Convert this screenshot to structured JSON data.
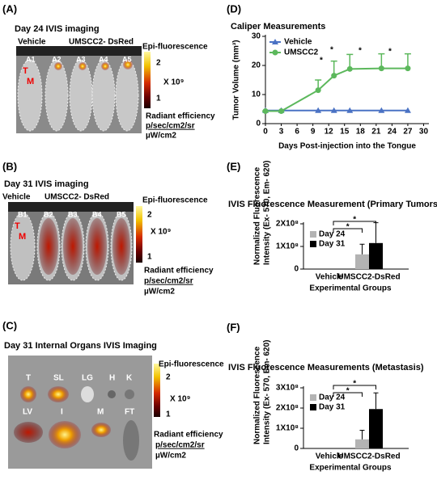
{
  "panels": {
    "A": {
      "label": "(A)",
      "title": "Day 24 IVIS imaging",
      "groups": [
        "Vehicle",
        "UMSCC2- DsRed"
      ],
      "mice": [
        "A1",
        "A2",
        "A3",
        "A4",
        "A5"
      ],
      "markers": [
        "T",
        "M"
      ],
      "colorbar": {
        "title": "Epi-fluorescence",
        "ticks": [
          "2",
          "1"
        ],
        "scale": "X 10⁹",
        "unit_title": "Radiant efficiency",
        "units": [
          "p/sec/cm2/sr",
          "µW/cm2"
        ]
      }
    },
    "B": {
      "label": "(B)",
      "title": "Day 31 IVIS imaging",
      "groups": [
        "Vehicle",
        "UMSCC2- DsRed"
      ],
      "mice": [
        "B1",
        "B2",
        "B3",
        "B4",
        "B5"
      ],
      "markers": [
        "T",
        "M"
      ],
      "colorbar": {
        "title": "Epi-fluorescence",
        "ticks": [
          "2",
          "1"
        ],
        "scale": "X 10⁹",
        "unit_title": "Radiant efficiency",
        "units": [
          "p/sec/cm2/sr",
          "µW/cm2"
        ]
      }
    },
    "C": {
      "label": "(C)",
      "title": "Day 31 Internal Organs IVIS Imaging",
      "organs": [
        "T",
        "SL",
        "LG",
        "H",
        "K",
        "LV",
        "I",
        "M",
        "FT"
      ],
      "colorbar": {
        "title": "Epi-fluorescence",
        "ticks": [
          "2",
          "1"
        ],
        "scale": "X 10⁹",
        "unit_title": "Radiant efficiency",
        "units": [
          "p/sec/cm2/sr",
          "µW/cm2"
        ]
      }
    }
  },
  "chart_data": [
    {
      "type": "line",
      "panel_label": "(D)",
      "title": "Caliper Measurements",
      "x_label": "Days Post-injection into the Tongue",
      "y_label": "Tumor Volume (mm³)",
      "x": [
        0,
        3,
        10,
        13,
        16,
        22,
        27
      ],
      "xlim": [
        0,
        31
      ],
      "xticks": [
        0,
        3,
        6,
        9,
        12,
        15,
        18,
        21,
        24,
        27,
        30
      ],
      "ylim": [
        0,
        30
      ],
      "yticks": [
        0,
        10,
        20,
        30
      ],
      "series": [
        {
          "name": "Vehicle",
          "color": "#4a72c4",
          "marker": "triangle",
          "values": [
            4.5,
            4.5,
            4.5,
            4.5,
            4.5,
            4.5,
            4.5
          ]
        },
        {
          "name": "UMSCC2",
          "color": "#5cb85c",
          "marker": "circle",
          "values": [
            4.3,
            4.3,
            11.5,
            16.5,
            18.8,
            19,
            19
          ],
          "errors": [
            0,
            0,
            3.5,
            5,
            5,
            5,
            5
          ]
        }
      ],
      "annotations": [
        "*",
        "*",
        "*",
        "*"
      ]
    },
    {
      "type": "bar",
      "panel_label": "(E)",
      "title": "IVIS Fluorescence Measurement (Primary Tumors)",
      "x_label": "Experimental Groups",
      "y_label": [
        "Normalized Fluorescence",
        "Intensity (Ex- 570, Em- 620)"
      ],
      "categories": [
        "Vehicle",
        "UMSCC2-DsRed"
      ],
      "ylim": [
        0,
        200000000
      ],
      "yticks": [
        0,
        {
          "value": 100000000,
          "label": "1X10⁸"
        },
        {
          "value": 200000000,
          "label": "2X10⁸"
        }
      ],
      "series": [
        {
          "name": "Day 24",
          "color": "#b3b3b3",
          "values": [
            0,
            65000000
          ],
          "errors": [
            0,
            45000000
          ]
        },
        {
          "name": "Day 31",
          "color": "#000000",
          "values": [
            0,
            115000000
          ],
          "errors": [
            0,
            90000000
          ]
        }
      ],
      "annotations": [
        "*",
        "*"
      ]
    },
    {
      "type": "bar",
      "panel_label": "(F)",
      "title": "IVIS Fluorescence Measurements (Metastasis)",
      "x_label": "Experimental Groups",
      "y_label": [
        "Normalized Fluorescence",
        "Intensity (Ex- 570, Em- 620)"
      ],
      "categories": [
        "Vehicle",
        "UMSCC2-DsRed"
      ],
      "ylim": [
        0,
        300000000
      ],
      "yticks": [
        0,
        {
          "value": 100000000,
          "label": "1X10⁸"
        },
        {
          "value": 200000000,
          "label": "2X10⁸"
        },
        {
          "value": 300000000,
          "label": "3X10⁸"
        }
      ],
      "series": [
        {
          "name": "Day 24",
          "color": "#b3b3b3",
          "values": [
            0,
            45000000
          ],
          "errors": [
            0,
            45000000
          ]
        },
        {
          "name": "Day 31",
          "color": "#000000",
          "values": [
            0,
            195000000
          ],
          "errors": [
            0,
            80000000
          ]
        }
      ],
      "annotations": [
        "*",
        "*"
      ]
    }
  ]
}
